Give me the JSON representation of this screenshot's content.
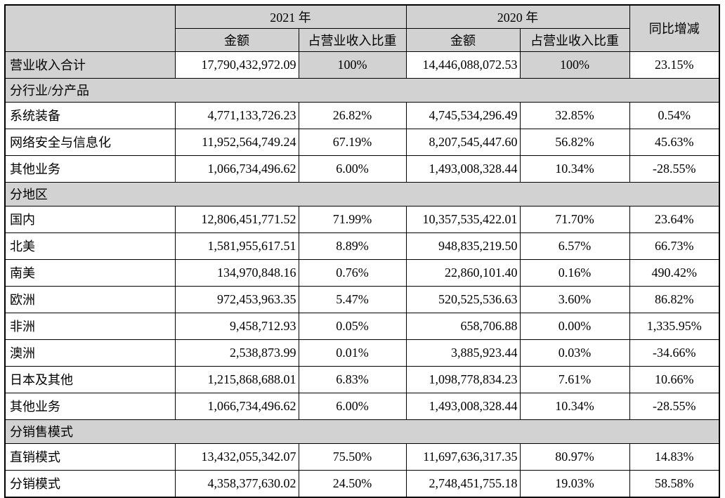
{
  "table": {
    "header": {
      "corner": "",
      "year_2021": "2021 年",
      "year_2020": "2020 年",
      "amount": "金额",
      "ratio": "占营业收入比重",
      "yoy": "同比增减"
    },
    "total_row": {
      "label": "营业收入合计",
      "amount_2021": "17,790,432,972.09",
      "ratio_2021": "100%",
      "amount_2020": "14,446,088,072.53",
      "ratio_2020": "100%",
      "yoy": "23.15%"
    },
    "sections": [
      {
        "title": "分行业/分产品",
        "rows": [
          [
            "系统装备",
            "4,771,133,726.23",
            "26.82%",
            "4,745,534,296.49",
            "32.85%",
            "0.54%"
          ],
          [
            "网络安全与信息化",
            "11,952,564,749.24",
            "67.19%",
            "8,207,545,447.60",
            "56.82%",
            "45.63%"
          ],
          [
            "其他业务",
            "1,066,734,496.62",
            "6.00%",
            "1,493,008,328.44",
            "10.34%",
            "-28.55%"
          ]
        ]
      },
      {
        "title": "分地区",
        "rows": [
          [
            "国内",
            "12,806,451,771.52",
            "71.99%",
            "10,357,535,422.01",
            "71.70%",
            "23.64%"
          ],
          [
            "北美",
            "1,581,955,617.51",
            "8.89%",
            "948,835,219.50",
            "6.57%",
            "66.73%"
          ],
          [
            "南美",
            "134,970,848.16",
            "0.76%",
            "22,860,101.40",
            "0.16%",
            "490.42%"
          ],
          [
            "欧洲",
            "972,453,963.35",
            "5.47%",
            "520,525,536.63",
            "3.60%",
            "86.82%"
          ],
          [
            "非洲",
            "9,458,712.93",
            "0.05%",
            "658,706.88",
            "0.00%",
            "1,335.95%"
          ],
          [
            "澳洲",
            "2,538,873.99",
            "0.01%",
            "3,885,923.44",
            "0.03%",
            "-34.66%"
          ],
          [
            "日本及其他",
            "1,215,868,688.01",
            "6.83%",
            "1,098,778,834.23",
            "7.61%",
            "10.66%"
          ],
          [
            "其他业务",
            "1,066,734,496.62",
            "6.00%",
            "1,493,008,328.44",
            "10.34%",
            "-28.55%"
          ]
        ]
      },
      {
        "title": "分销售模式",
        "rows": [
          [
            "直销模式",
            "13,432,055,342.07",
            "75.50%",
            "11,697,636,317.35",
            "80.97%",
            "14.83%"
          ],
          [
            "分销模式",
            "4,358,377,630.02",
            "24.50%",
            "2,748,451,755.18",
            "19.03%",
            "58.58%"
          ]
        ]
      }
    ],
    "colors": {
      "header_bg": "#d2d2d2",
      "border": "#000000",
      "data_bg": "#ffffff"
    }
  }
}
